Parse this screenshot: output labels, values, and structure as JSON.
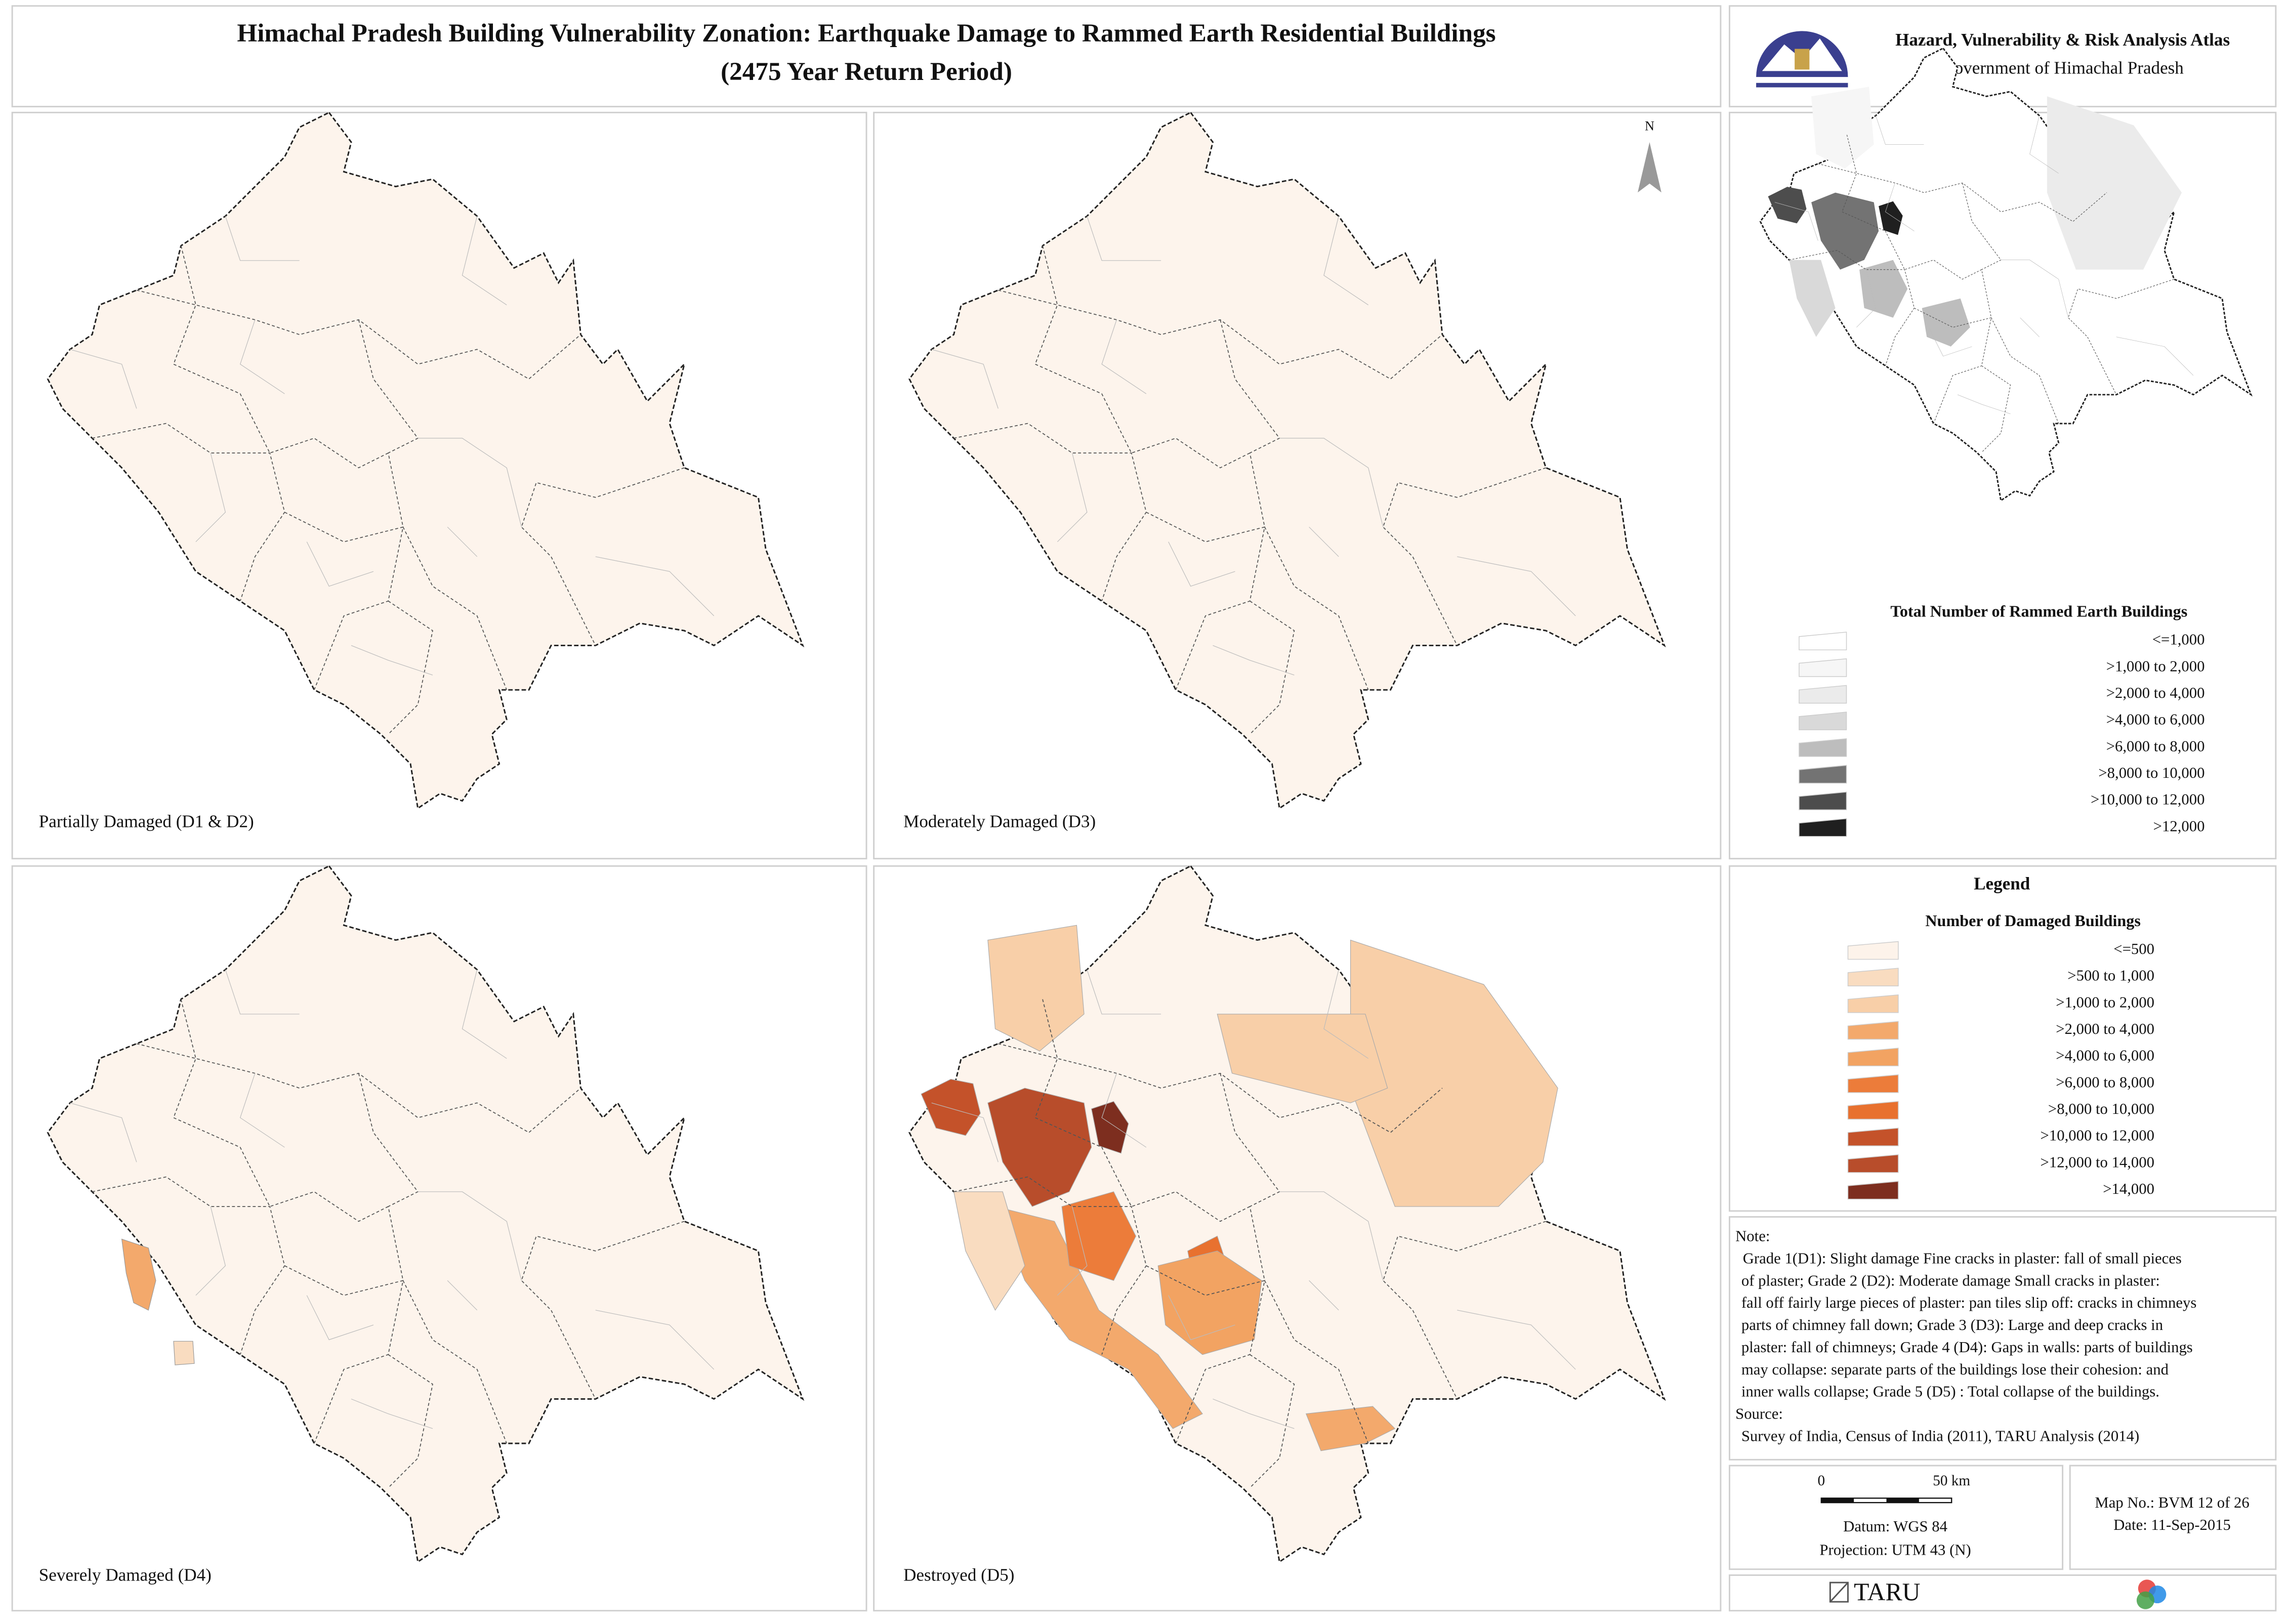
{
  "header": {
    "title": "Himachal Pradesh Building Vulnerability Zonation: Earthquake Damage to Rammed Earth Residential Buildings",
    "subtitle": "(2475 Year Return Period)",
    "atlas_title": "Hazard, Vulnerability & Risk Analysis Atlas",
    "atlas_org": "Government of Himachal Pradesh"
  },
  "panels": [
    "Partially Damaged (D1 & D2)",
    "Moderately Damaged (D3)",
    "Severely Damaged (D4)",
    "Destroyed (D5)"
  ],
  "north": "N",
  "inset_legend": {
    "title": "Total Number of Rammed Earth Buildings",
    "items": [
      {
        "label": "<=1,000",
        "color": "#ffffff"
      },
      {
        "label": ">1,000 to 2,000",
        "color": "#f6f6f6"
      },
      {
        "label": ">2,000 to 4,000",
        "color": "#ebebeb"
      },
      {
        "label": ">4,000 to 6,000",
        "color": "#d9d9d9"
      },
      {
        "label": ">6,000 to 8,000",
        "color": "#bdbdbd"
      },
      {
        "label": ">8,000 to 10,000",
        "color": "#737373"
      },
      {
        "label": ">10,000 to 12,000",
        "color": "#4d4d4d"
      },
      {
        "label": ">12,000",
        "color": "#1f1f1f"
      }
    ]
  },
  "legend": {
    "heading": "Legend",
    "title": "Number of Damaged Buildings",
    "items": [
      {
        "label": "<=500",
        "color": "#fdf3ea"
      },
      {
        "label": ">500 to 1,000",
        "color": "#f9dcc0"
      },
      {
        "label": ">1,000 to 2,000",
        "color": "#f8cfa8"
      },
      {
        "label": ">2,000 to 4,000",
        "color": "#f3a96c"
      },
      {
        "label": ">4,000 to 6,000",
        "color": "#f2a362"
      },
      {
        "label": ">6,000 to 8,000",
        "color": "#ec7c3a"
      },
      {
        "label": ">8,000 to 10,000",
        "color": "#e8712f"
      },
      {
        "label": ">10,000 to 12,000",
        "color": "#c4522a"
      },
      {
        "label": ">12,000 to 14,000",
        "color": "#b84d2b"
      },
      {
        "label": ">14,000",
        "color": "#7d2e1f"
      }
    ]
  },
  "note": {
    "heading": "Note:",
    "lines": [
      "Grade 1(D1): Slight damage Fine cracks in plaster: fall of small pieces",
      "of plaster; Grade 2 (D2): Moderate damage Small cracks in plaster:",
      "fall off fairly large pieces of plaster: pan tiles slip off: cracks in chimneys",
      "parts of chimney fall down; Grade 3 (D3): Large and deep cracks in",
      "plaster: fall of chimneys; Grade 4 (D4): Gaps in walls: parts of buildings",
      "may collapse: separate parts of the buildings lose their cohesion: and",
      "inner walls collapse; Grade 5 (D5) : Total collapse of the buildings."
    ],
    "source_heading": "Source:",
    "source": "Survey of India, Census of India (2011),  TARU Analysis (2014)"
  },
  "scale": {
    "start": "0",
    "end": "50 km",
    "datum": "Datum: WGS 84",
    "projection": "Projection: UTM 43 (N)"
  },
  "map_info": {
    "map_no": "Map No.: BVM 12 of 26",
    "date": "Date: 11-Sep-2015"
  },
  "footer": {
    "taru": "TARU"
  }
}
